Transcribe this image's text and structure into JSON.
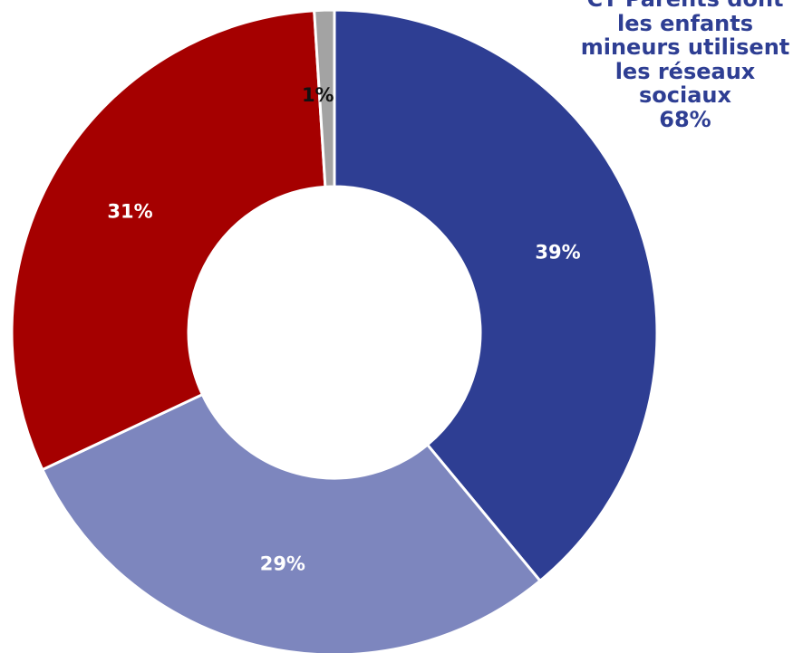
{
  "chart_data": {
    "type": "pie",
    "donut": true,
    "slices": [
      {
        "label": "39%",
        "value": 39,
        "color": "#2e3e93"
      },
      {
        "label": "29%",
        "value": 29,
        "color": "#7d86be"
      },
      {
        "label": "31%",
        "value": 31,
        "color": "#a50000"
      },
      {
        "label": "1%",
        "value": 1,
        "color": "#a3a3a3"
      }
    ],
    "annotation": {
      "lines": [
        "CT Parents dont",
        "les enfants",
        "mineurs utilisent",
        "les réseaux",
        "sociaux",
        "68%"
      ],
      "color": "#2e3e93"
    },
    "label_colors": {
      "light": "#ffffff",
      "dark": "#111111"
    },
    "start_angle_deg": 0,
    "direction": "clockwise"
  }
}
